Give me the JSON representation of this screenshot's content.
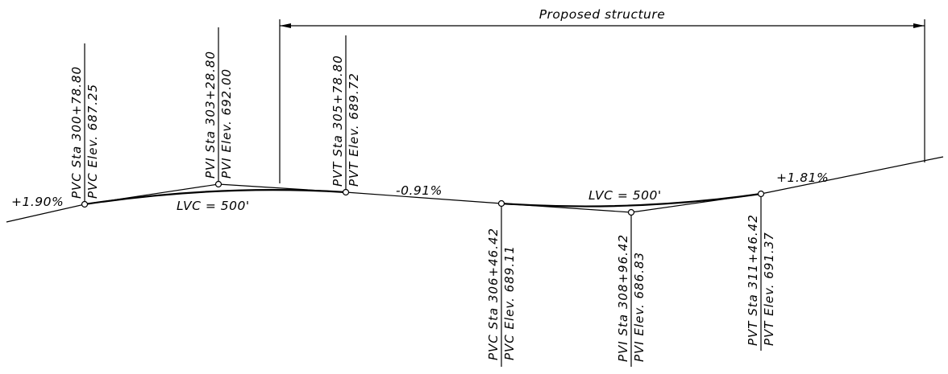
{
  "title": "Proposed structure",
  "grades": {
    "left": "+1.90%",
    "middle": "-0.91%",
    "right": "+1.81%"
  },
  "curves": [
    {
      "length_label": "LVC = 500'"
    },
    {
      "length_label": "LVC = 500'"
    }
  ],
  "points": [
    {
      "sta": "PVC Sta 300+78.80",
      "elev": "PVC Elev. 687.25"
    },
    {
      "sta": "PVI Sta 303+28.80",
      "elev": "PVI Elev. 692.00"
    },
    {
      "sta": "PVT Sta 305+78.80",
      "elev": "PVT Elev. 689.72"
    },
    {
      "sta": "PVC Sta 306+46.42",
      "elev": "PVC Elev. 689.11"
    },
    {
      "sta": "PVI Sta 308+96.42",
      "elev": "PVI Elev. 686.83"
    },
    {
      "sta": "PVT Sta 311+46.42",
      "elev": "PVT Elev. 691.37"
    }
  ]
}
